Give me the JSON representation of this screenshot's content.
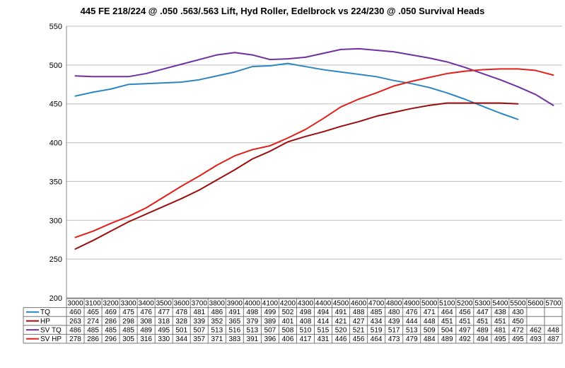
{
  "chart_data": {
    "type": "line",
    "title": "445 FE 218/224 @ .050 .563/.563 Lift, Hyd Roller, Edelbrock vs 224/230 @ .050 Survival Heads",
    "xlabel": "",
    "ylabel": "",
    "ylim": [
      200,
      550
    ],
    "yticks": [
      200,
      250,
      300,
      350,
      400,
      450,
      500,
      550
    ],
    "grid": "horizontal",
    "legend": "data-table-below",
    "categories": [
      "3000",
      "3100",
      "3200",
      "3300",
      "3400",
      "3500",
      "3600",
      "3700",
      "3800",
      "3900",
      "4000",
      "4100",
      "4200",
      "4300",
      "4400",
      "4500",
      "4600",
      "4700",
      "4800",
      "4900",
      "5000",
      "5100",
      "5200",
      "5300",
      "5400",
      "5500",
      "5600",
      "5700"
    ],
    "series": [
      {
        "name": "TQ",
        "color": "#2e86c1",
        "values": [
          460,
          465,
          469,
          475,
          476,
          477,
          478,
          481,
          486,
          491,
          498,
          499,
          502,
          498,
          494,
          491,
          488,
          485,
          480,
          476,
          471,
          464,
          456,
          447,
          438,
          430,
          null,
          null
        ]
      },
      {
        "name": "HP",
        "color": "#9b0d0d",
        "values": [
          263,
          274,
          286,
          298,
          308,
          318,
          328,
          339,
          352,
          365,
          379,
          389,
          401,
          408,
          414,
          421,
          427,
          434,
          439,
          444,
          448,
          451,
          451,
          451,
          451,
          450,
          null,
          null
        ]
      },
      {
        "name": "SV TQ",
        "color": "#7030a0",
        "values": [
          486,
          485,
          485,
          485,
          489,
          495,
          501,
          507,
          513,
          516,
          513,
          507,
          508,
          510,
          515,
          520,
          521,
          519,
          517,
          513,
          509,
          504,
          497,
          489,
          481,
          472,
          462,
          448
        ]
      },
      {
        "name": "SV HP",
        "color": "#e0201b",
        "values": [
          278,
          286,
          296,
          305,
          316,
          330,
          344,
          357,
          371,
          383,
          391,
          396,
          406,
          417,
          431,
          446,
          456,
          464,
          473,
          479,
          484,
          489,
          492,
          494,
          495,
          495,
          493,
          487
        ]
      }
    ]
  }
}
